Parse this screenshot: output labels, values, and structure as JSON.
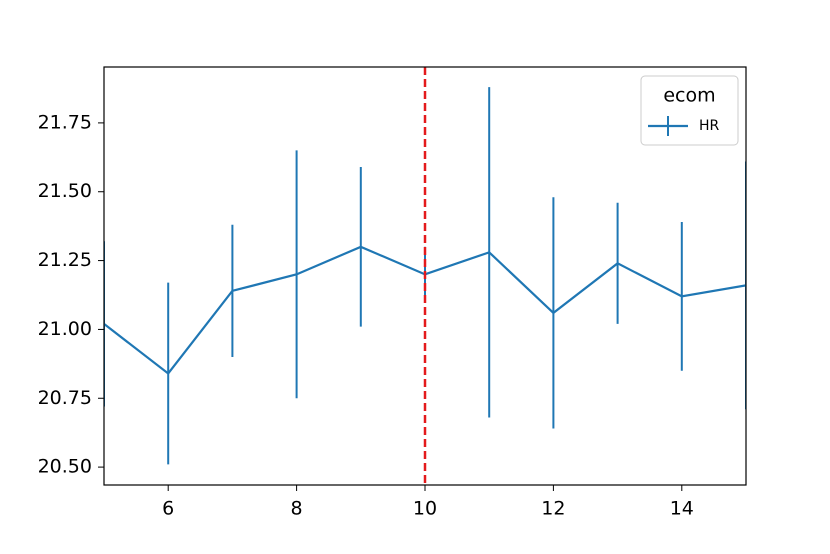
{
  "chart_data": {
    "type": "line",
    "x": [
      5,
      6,
      7,
      8,
      9,
      10,
      11,
      12,
      13,
      14,
      15
    ],
    "series": [
      {
        "name": "HR",
        "color": "#1f77b4",
        "values": [
          21.02,
          20.84,
          21.14,
          21.2,
          21.3,
          21.2,
          21.28,
          21.06,
          21.24,
          21.12,
          21.16
        ],
        "errors": [
          0.3,
          0.33,
          0.24,
          0.45,
          0.29,
          0.1,
          0.6,
          0.42,
          0.22,
          0.27,
          0.45
        ]
      }
    ],
    "legend_title": "ecom",
    "legend": "upper right",
    "vline": 10,
    "vline_color": "#e41a1c",
    "xlim": [
      5,
      15
    ],
    "xticks": [
      6,
      8,
      10,
      12,
      14
    ],
    "ylim": [
      20.435,
      21.953
    ],
    "yticks": [
      {
        "value": 20.5,
        "label": "20.50"
      },
      20.75,
      {
        "value": 21.0,
        "label": "21.00"
      },
      21.25,
      {
        "value": 21.5,
        "label": "21.50"
      },
      {
        "value": 21.75,
        "label": "21.75"
      }
    ],
    "grid": false
  }
}
